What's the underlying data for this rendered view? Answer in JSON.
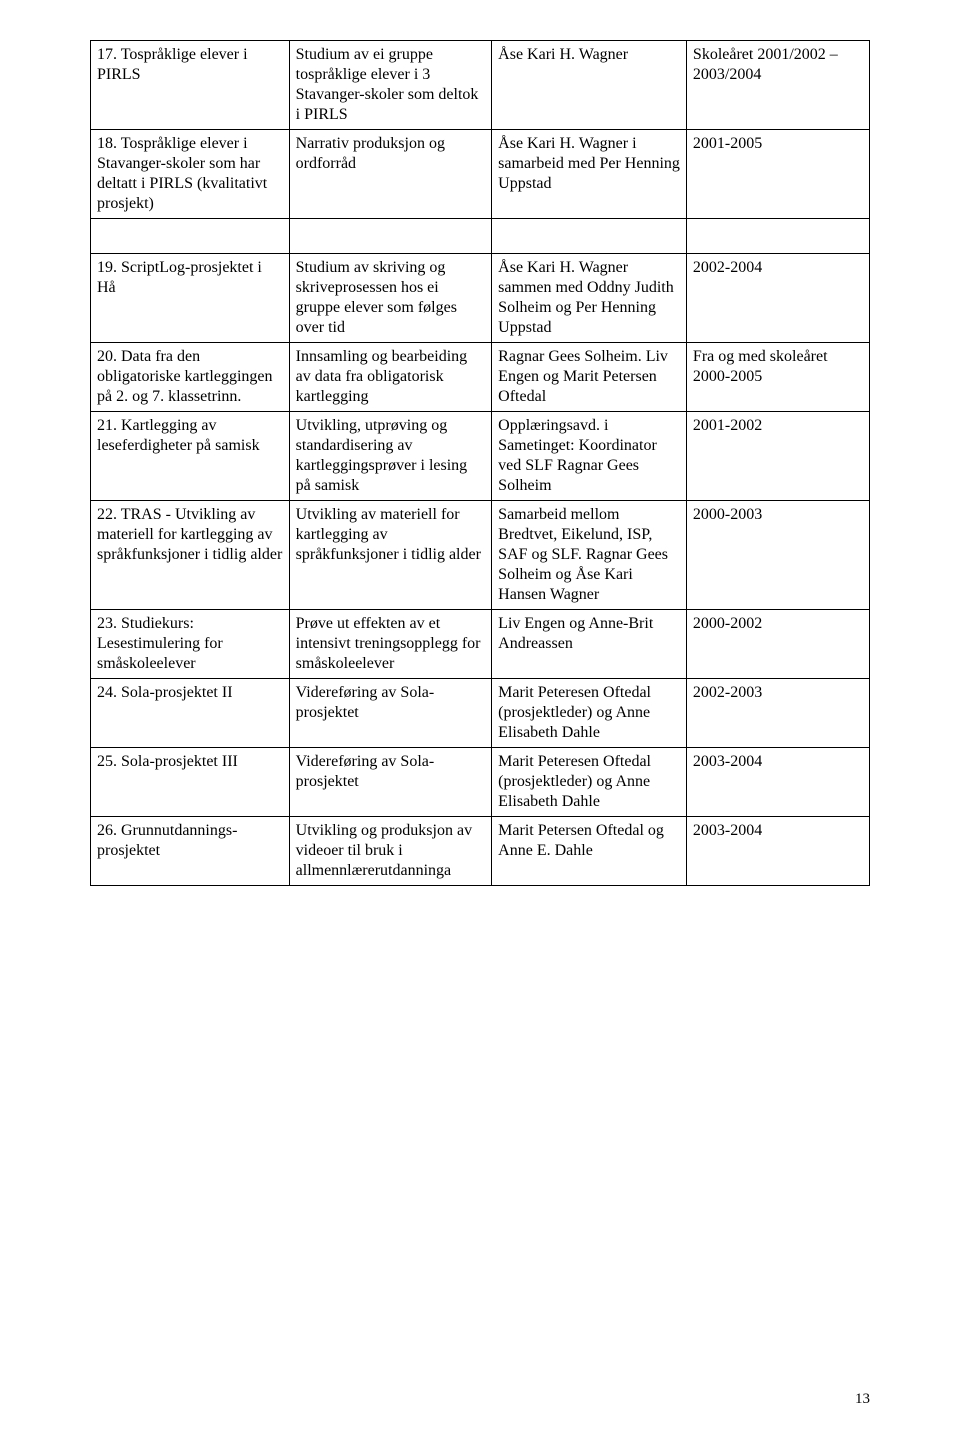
{
  "rows": [
    {
      "c1": "17. Tospråklige elever i PIRLS",
      "c2": "Studium av ei gruppe tospråklige elever i 3 Stavanger-skoler som deltok i PIRLS",
      "c3": "Åse Kari H. Wagner",
      "c4": "Skoleåret 2001/2002 – 2003/2004"
    },
    {
      "c1": "18. Tospråklige elever i Stavanger-skoler som har deltatt i PIRLS (kvalitativt prosjekt)",
      "c2": "Narrativ produksjon og ordforråd",
      "c3": "Åse Kari H. Wagner i samarbeid med Per Henning Uppstad",
      "c4": "2001-2005"
    },
    {
      "c1": "19. ScriptLog-prosjektet i Hå",
      "c2": "Studium av skriving og skriveprosessen hos ei gruppe elever som følges over tid",
      "c3": "Åse Kari H. Wagner sammen med Oddny Judith Solheim og Per Henning Uppstad",
      "c4": "2002-2004"
    },
    {
      "c1": "20. Data fra den obligatoriske kartleggingen på 2. og 7. klassetrinn.",
      "c2": "Innsamling og bearbeiding av data fra obligatorisk kartlegging",
      "c3": "Ragnar Gees Solheim. Liv Engen og Marit Petersen Oftedal",
      "c4": "Fra og med skoleåret 2000-2005"
    },
    {
      "c1": "21. Kartlegging av leseferdigheter på samisk",
      "c2": "Utvikling, utprøving og standardisering av kartleggingsprøver i lesing på samisk",
      "c3": "Opplæringsavd. i Sametinget: Koordinator ved SLF Ragnar Gees Solheim",
      "c4": "2001-2002"
    },
    {
      "c1": "22. TRAS - Utvikling av materiell for kartlegging av språkfunksjoner i tidlig alder",
      "c2": "Utvikling av materiell for kartlegging av språkfunksjoner i tidlig alder",
      "c3": "Samarbeid mellom Bredtvet, Eikelund, ISP, SAF og SLF. Ragnar Gees Solheim og Åse Kari Hansen Wagner",
      "c4": "2000-2003"
    },
    {
      "c1": "23. Studiekurs: Lesestimulering for småskoleelever",
      "c2": "Prøve ut effekten av et intensivt treningsopplegg for småskoleelever",
      "c3": "Liv Engen og Anne-Brit Andreassen",
      "c4": "2000-2002"
    },
    {
      "c1": "24. Sola-prosjektet II",
      "c2": "Videreføring av Sola-prosjektet",
      "c3": "Marit Peteresen Oftedal (prosjektleder) og Anne Elisabeth Dahle",
      "c4": "2002-2003"
    },
    {
      "c1": "25. Sola-prosjektet III",
      "c2": "Videreføring av Sola-prosjektet",
      "c3": "Marit Peteresen Oftedal (prosjektleder) og Anne Elisabeth Dahle",
      "c4": "2003-2004"
    },
    {
      "c1": "26. Grunnutdannings-prosjektet",
      "c2": "Utvikling og produksjon av videoer til bruk i allmennlærerutdanninga",
      "c3": "Marit Petersen Oftedal og Anne E. Dahle",
      "c4": "2003-2004"
    }
  ],
  "pageNumber": "13"
}
